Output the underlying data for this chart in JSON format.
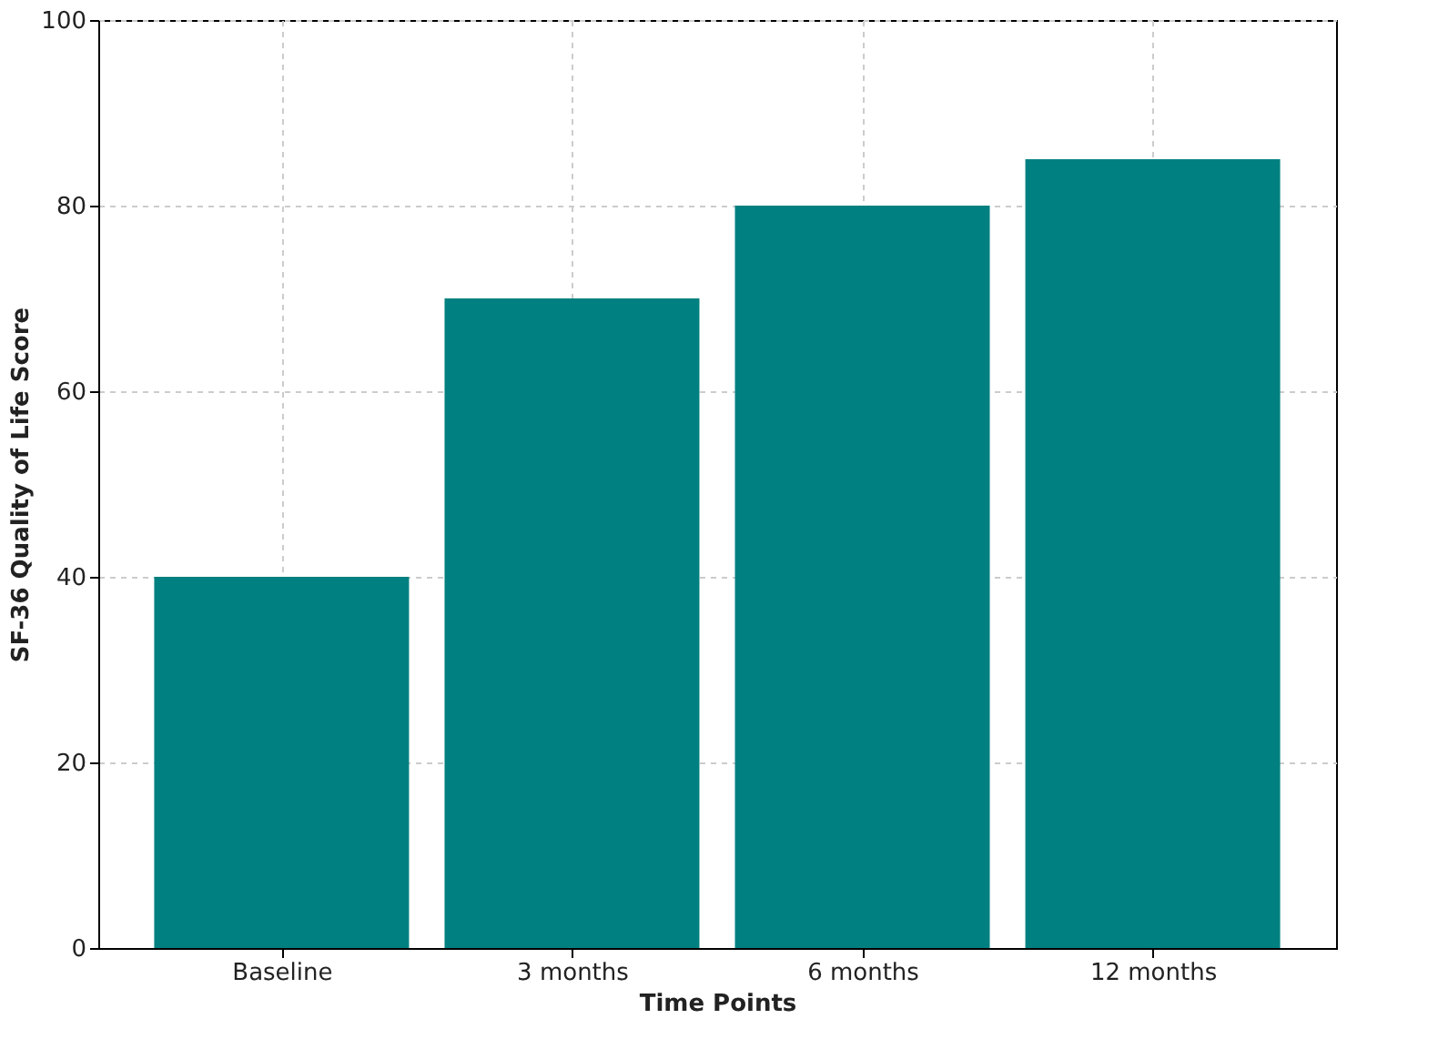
{
  "chart_data": {
    "type": "bar",
    "xlabel": "Time Points",
    "ylabel": "SF-36 Quality of Life Score",
    "categories": [
      "Baseline",
      "3 months",
      "6 months",
      "12 months"
    ],
    "values": [
      40,
      70,
      80,
      85
    ],
    "color": "#008080",
    "ylim": [
      0,
      100
    ],
    "yticks": [
      0,
      20,
      40,
      60,
      80,
      100
    ],
    "grid": true
  }
}
